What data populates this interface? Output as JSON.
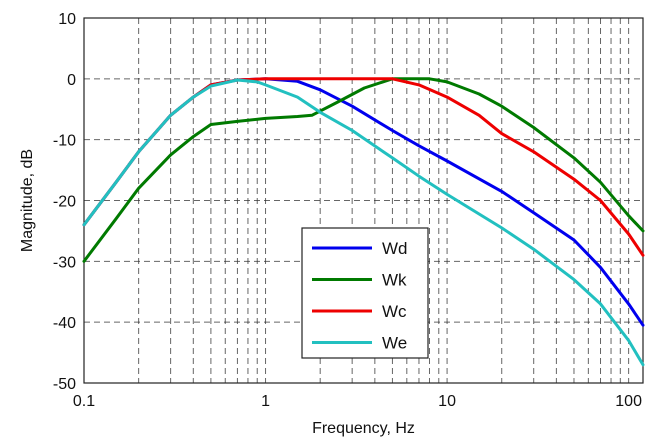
{
  "chart_data": {
    "type": "line",
    "title": "",
    "xlabel": "Frequency, Hz",
    "ylabel": "Magnitude, dB",
    "xscale": "log",
    "xlim": [
      0.1,
      120
    ],
    "ylim": [
      -50,
      10
    ],
    "xticks": [
      0.1,
      1,
      10,
      100
    ],
    "xtick_labels": [
      "0.1",
      "1",
      "10",
      "100"
    ],
    "yticks": [
      10,
      0,
      -10,
      -20,
      -30,
      -40,
      -50
    ],
    "ytick_labels": [
      "10",
      "0",
      "-10",
      "-20",
      "-30",
      "-40",
      "-50"
    ],
    "grid": true,
    "legend_position": "lower-center",
    "series": [
      {
        "name": "Wd",
        "color": "#0000ee",
        "points": [
          [
            0.1,
            -24
          ],
          [
            0.15,
            -17
          ],
          [
            0.2,
            -12
          ],
          [
            0.3,
            -6
          ],
          [
            0.4,
            -3
          ],
          [
            0.5,
            -1
          ],
          [
            0.7,
            -0.2
          ],
          [
            1,
            0
          ],
          [
            1.5,
            -0.4
          ],
          [
            2,
            -1.8
          ],
          [
            3,
            -4.5
          ],
          [
            5,
            -8.5
          ],
          [
            7,
            -11
          ],
          [
            10,
            -13.5
          ],
          [
            20,
            -18.5
          ],
          [
            30,
            -22
          ],
          [
            50,
            -26.5
          ],
          [
            70,
            -31
          ],
          [
            100,
            -37
          ],
          [
            120,
            -40.5
          ]
        ]
      },
      {
        "name": "Wk",
        "color": "#007a00",
        "points": [
          [
            0.1,
            -30
          ],
          [
            0.15,
            -23
          ],
          [
            0.2,
            -18
          ],
          [
            0.3,
            -12.5
          ],
          [
            0.4,
            -9.5
          ],
          [
            0.5,
            -7.5
          ],
          [
            0.7,
            -7
          ],
          [
            1,
            -6.5
          ],
          [
            1.5,
            -6.2
          ],
          [
            1.8,
            -6
          ],
          [
            2.5,
            -3.8
          ],
          [
            3.5,
            -1.5
          ],
          [
            5,
            0
          ],
          [
            8,
            0
          ],
          [
            10,
            -0.5
          ],
          [
            15,
            -2.5
          ],
          [
            20,
            -4.5
          ],
          [
            30,
            -8
          ],
          [
            50,
            -13
          ],
          [
            70,
            -17
          ],
          [
            100,
            -22.5
          ],
          [
            120,
            -25
          ]
        ]
      },
      {
        "name": "Wc",
        "color": "#ee0000",
        "points": [
          [
            0.1,
            -24
          ],
          [
            0.15,
            -17
          ],
          [
            0.2,
            -12
          ],
          [
            0.3,
            -6
          ],
          [
            0.4,
            -3
          ],
          [
            0.5,
            -1
          ],
          [
            0.7,
            -0.2
          ],
          [
            1,
            0
          ],
          [
            2,
            0
          ],
          [
            3,
            0
          ],
          [
            5,
            0
          ],
          [
            7,
            -1
          ],
          [
            10,
            -3
          ],
          [
            15,
            -6
          ],
          [
            20,
            -9
          ],
          [
            30,
            -12
          ],
          [
            50,
            -16.5
          ],
          [
            70,
            -20
          ],
          [
            100,
            -25.5
          ],
          [
            120,
            -29
          ]
        ]
      },
      {
        "name": "We",
        "color": "#22c0c0",
        "points": [
          [
            0.1,
            -24
          ],
          [
            0.15,
            -17
          ],
          [
            0.2,
            -12
          ],
          [
            0.3,
            -6
          ],
          [
            0.4,
            -3
          ],
          [
            0.5,
            -1.2
          ],
          [
            0.7,
            -0.2
          ],
          [
            0.9,
            -0.5
          ],
          [
            1,
            -1
          ],
          [
            1.5,
            -3
          ],
          [
            2,
            -5.5
          ],
          [
            3,
            -8.5
          ],
          [
            5,
            -13
          ],
          [
            7,
            -16
          ],
          [
            10,
            -19
          ],
          [
            20,
            -24.5
          ],
          [
            30,
            -28
          ],
          [
            50,
            -33
          ],
          [
            70,
            -37
          ],
          [
            100,
            -43
          ],
          [
            120,
            -47
          ]
        ]
      }
    ]
  }
}
